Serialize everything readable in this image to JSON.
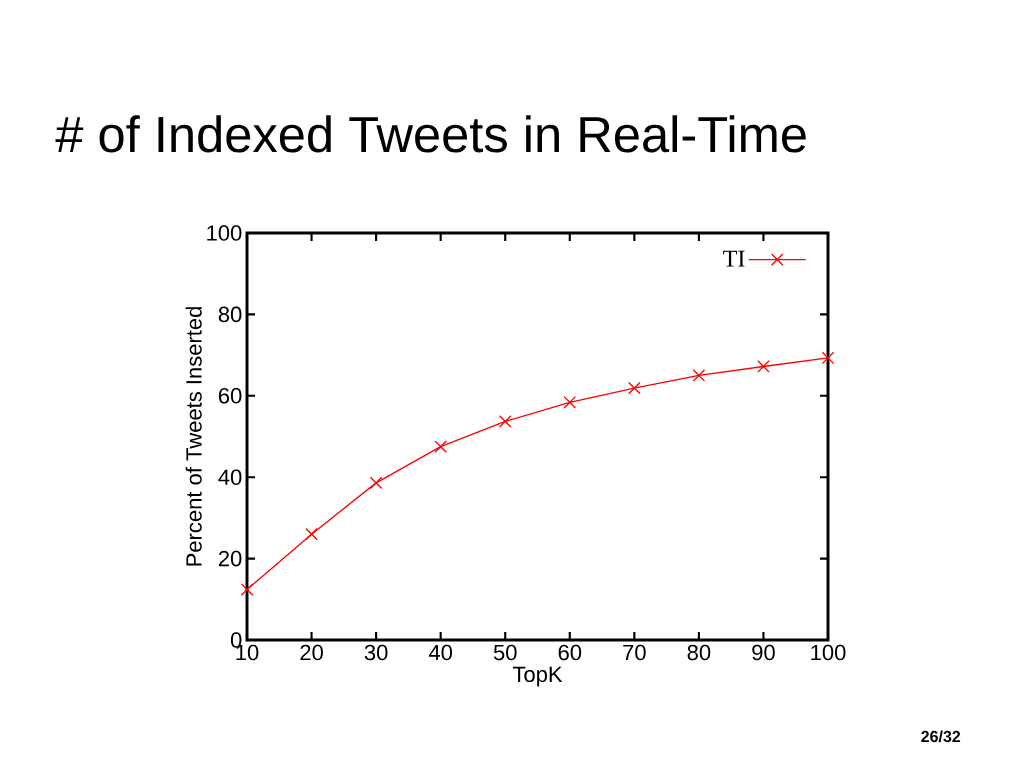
{
  "chart_data": {
    "type": "line",
    "title": "# of Indexed Tweets in Real-Time",
    "xlabel": "TopK",
    "ylabel": "Percent of Tweets Inserted",
    "x": [
      10,
      20,
      30,
      40,
      50,
      60,
      70,
      80,
      90,
      100
    ],
    "series": [
      {
        "name": "TI",
        "color": "#ff0000",
        "values": [
          12.4,
          26.0,
          38.6,
          47.5,
          53.7,
          58.4,
          61.9,
          65.0,
          67.2,
          69.3
        ]
      }
    ],
    "xlim": [
      10,
      100
    ],
    "xticks": [
      10,
      20,
      30,
      40,
      50,
      60,
      70,
      80,
      90,
      100
    ],
    "ylim": [
      0,
      100
    ],
    "yticks": [
      0,
      20,
      40,
      60,
      80,
      100
    ],
    "grid": false,
    "legend": "top right",
    "marker": "cross",
    "line_style": "solid",
    "annotations": [
      "26/32"
    ]
  }
}
